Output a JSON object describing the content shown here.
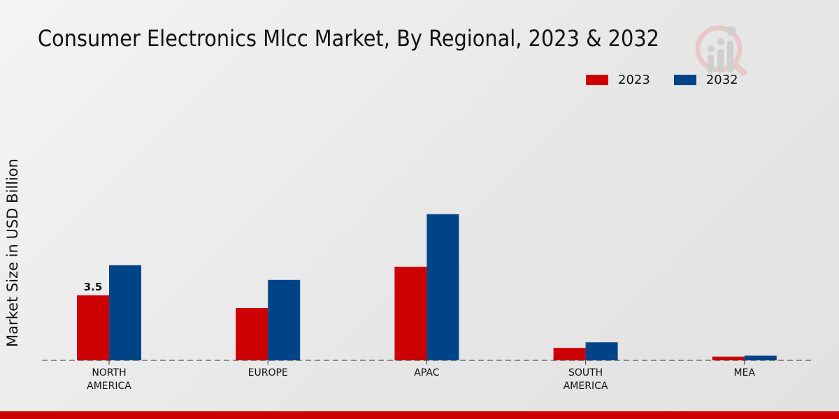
{
  "chart_data": {
    "type": "bar",
    "title": "Consumer Electronics Mlcc Market, By Regional, 2023 & 2032",
    "xlabel": "",
    "ylabel": "Market Size in USD Billion",
    "categories": [
      "NORTH\nAMERICA",
      "EUROPE",
      "APAC",
      "SOUTH\nAMERICA",
      "MEA"
    ],
    "series": [
      {
        "name": "2023",
        "color": "#cc0000",
        "values": [
          3.5,
          2.82,
          5.04,
          0.67,
          0.2
        ]
      },
      {
        "name": "2032",
        "color": "#004488",
        "values": [
          5.12,
          4.33,
          7.87,
          0.97,
          0.25
        ]
      }
    ],
    "data_labels": [
      {
        "series": "2023",
        "category_index": 0,
        "text": "3.5"
      }
    ],
    "ylim": [
      0,
      9
    ],
    "grid": false,
    "legend_position": "top-right"
  }
}
